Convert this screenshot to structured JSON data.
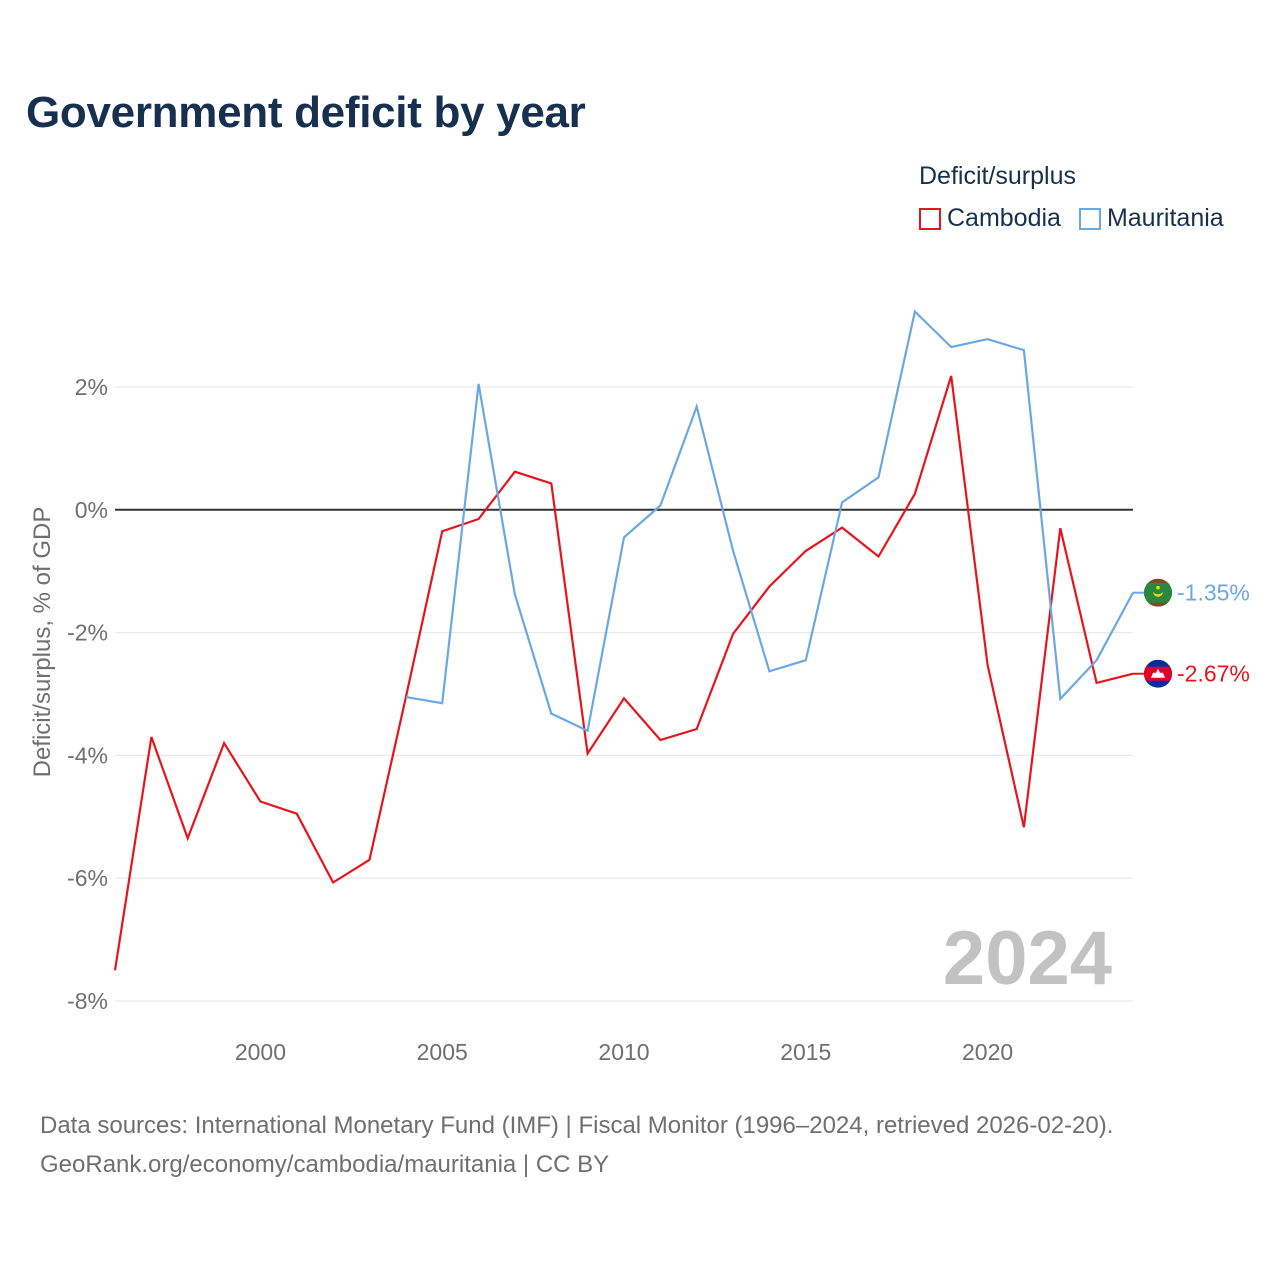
{
  "title": "Government deficit by year",
  "legend_title": "Deficit/surplus",
  "source_line1": "Data sources: International Monetary Fund (IMF) | Fiscal Monitor (1996–2024, retrieved 2026-02-20).",
  "source_line2": "GeoRank.org/economy/cambodia/mauritania | CC BY",
  "year_watermark": "2024",
  "colors": {
    "cambodia": "#e8141c",
    "mauritania": "#6aa8e3",
    "zero_line": "#333333",
    "grid": "#e6e6e6"
  },
  "chart_data": {
    "type": "line",
    "title": "Government deficit by year",
    "xlabel": "",
    "ylabel": "Deficit/surplus, % of GDP",
    "xlim": [
      1996,
      2024
    ],
    "ylim": [
      -8,
      3.5
    ],
    "x_ticks": [
      2000,
      2005,
      2010,
      2015,
      2020
    ],
    "y_ticks": [
      {
        "value": 2,
        "label": "2%"
      },
      {
        "value": 0,
        "label": "0%"
      },
      {
        "value": -2,
        "label": "-2%"
      },
      {
        "value": -4,
        "label": "-4%"
      },
      {
        "value": -6,
        "label": "-6%"
      },
      {
        "value": -8,
        "label": "-8%"
      }
    ],
    "series": [
      {
        "name": "Cambodia",
        "color": "#e8141c",
        "x": [
          1996,
          1997,
          1998,
          1999,
          2000,
          2001,
          2002,
          2003,
          2004,
          2005,
          2006,
          2007,
          2008,
          2009,
          2010,
          2011,
          2012,
          2013,
          2014,
          2015,
          2016,
          2017,
          2018,
          2019,
          2020,
          2021,
          2022,
          2023,
          2024
        ],
        "values": [
          -7.5,
          -3.7,
          -5.35,
          -3.8,
          -4.75,
          -4.95,
          -6.07,
          -5.7,
          -3.05,
          -0.35,
          -0.15,
          0.62,
          0.43,
          -3.97,
          -3.07,
          -3.75,
          -3.57,
          -2.02,
          -1.25,
          -0.67,
          -0.29,
          -0.76,
          0.26,
          2.18,
          -2.53,
          -5.17,
          -0.3,
          -2.82,
          -2.67
        ],
        "end_label": "-2.67%",
        "icon": "cambodia-flag-icon"
      },
      {
        "name": "Mauritania",
        "color": "#6aa8e3",
        "x": [
          2004,
          2005,
          2006,
          2007,
          2008,
          2009,
          2010,
          2011,
          2012,
          2013,
          2014,
          2015,
          2016,
          2017,
          2018,
          2019,
          2020,
          2021,
          2022,
          2023,
          2024
        ],
        "values": [
          -3.05,
          -3.15,
          2.05,
          -1.38,
          -3.32,
          -3.6,
          -0.45,
          0.07,
          1.68,
          -0.67,
          -2.63,
          -2.45,
          0.12,
          0.53,
          3.23,
          2.65,
          2.78,
          2.6,
          -3.08,
          -2.45,
          -1.35
        ],
        "end_label": "-1.35%",
        "icon": "mauritania-flag-icon"
      }
    ]
  }
}
